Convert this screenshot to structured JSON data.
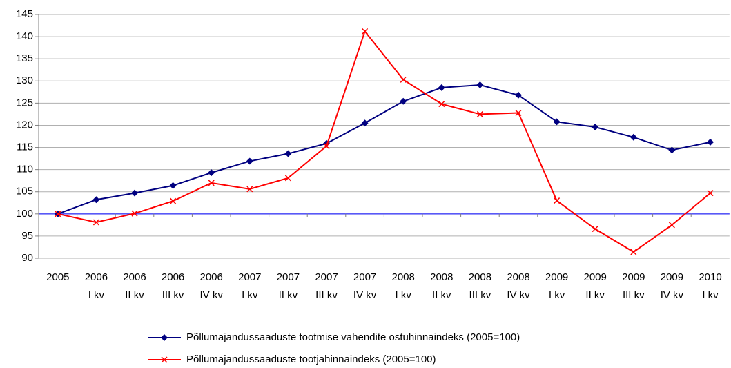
{
  "chart_data": {
    "type": "line",
    "categories": [
      "2005",
      "2006\nI kv",
      "2006\nII kv",
      "2006\nIII kv",
      "2006\nIV kv",
      "2007\nI kv",
      "2007\nII kv",
      "2007\nIII kv",
      "2007\nIV kv",
      "2008\nI kv",
      "2008\nII kv",
      "2008\nIII kv",
      "2008\nIV kv",
      "2009\nI kv",
      "2009\nII kv",
      "2009\nIII kv",
      "2009\nIV kv",
      "2010\nI kv"
    ],
    "series": [
      {
        "name": "Põllumajandussaaduste tootmise vahendite ostuhinnaindeks (2005=100)",
        "color": "#000080",
        "marker": "diamond",
        "values": [
          100,
          103.2,
          104.7,
          106.4,
          109.3,
          111.9,
          113.6,
          115.9,
          120.5,
          125.4,
          128.5,
          129.1,
          126.8,
          120.8,
          119.6,
          117.3,
          114.4,
          116.2
        ]
      },
      {
        "name": "Põllumajandussaaduste tootjahinnaindeks (2005=100)",
        "color": "#ff0000",
        "marker": "x",
        "values": [
          100,
          98.1,
          100.1,
          102.9,
          107,
          105.6,
          108.1,
          115.3,
          141.2,
          130.3,
          124.8,
          122.5,
          122.8,
          103,
          96.6,
          91.4,
          97.5,
          104.7
        ]
      }
    ],
    "ylim": [
      90,
      145
    ],
    "yticks": [
      90,
      95,
      100,
      105,
      110,
      115,
      120,
      125,
      130,
      135,
      140,
      145
    ],
    "xaxis_at": 100,
    "grid": true,
    "legend": "bottom"
  }
}
